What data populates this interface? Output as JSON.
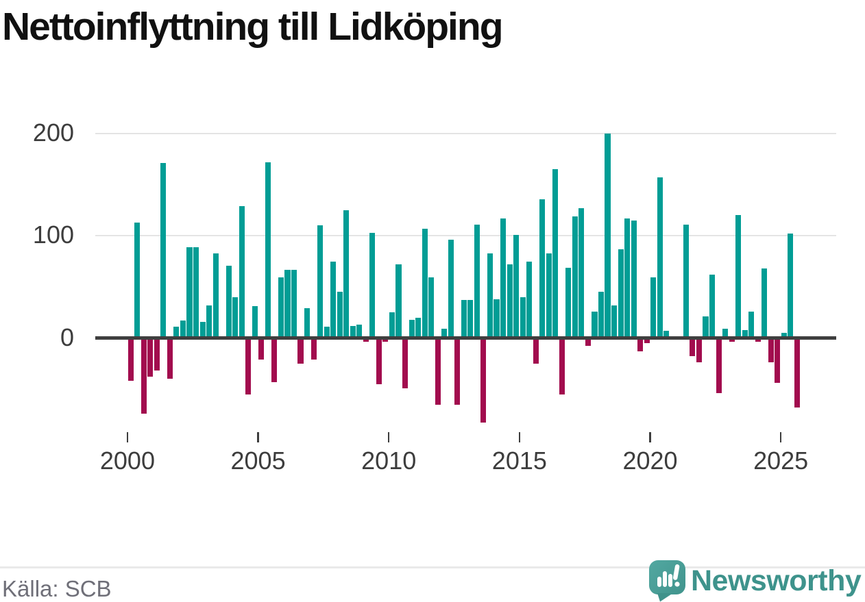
{
  "title": "Nettoinflyttning till Lidköping",
  "source": "Källa: SCB",
  "branding": {
    "name": "Newsworthy"
  },
  "colors": {
    "positive": "#009D95",
    "negative": "#A20C4E",
    "axis": "#3F3F3F",
    "grid": "#E4E4E4",
    "tick_text": "#3D3D3D",
    "title_text": "#111111",
    "source_text": "#6F6F78",
    "brand_teal": "#3E938C",
    "icon_teal_light": "#4FA69F",
    "icon_teal_dark": "#3F928B"
  },
  "chart_data": {
    "type": "bar",
    "title": "Nettoinflyttning till Lidköping",
    "xlabel": "",
    "ylabel": "",
    "x_unit": "quarter",
    "start": "2000-Q1",
    "end": "2025-Q3",
    "frequency": "quarterly",
    "positive_color": "#009D95",
    "negative_color": "#A20C4E",
    "grid": "horizontal",
    "legend": "none",
    "yticks": [
      0,
      100,
      200
    ],
    "xticks": [
      2000,
      2005,
      2010,
      2015,
      2020,
      2025
    ],
    "ylim": [
      -100,
      220
    ],
    "values": [
      -42,
      113,
      -74,
      -38,
      -32,
      171,
      -40,
      11,
      17,
      89,
      89,
      16,
      32,
      83,
      0,
      71,
      40,
      129,
      -55,
      31,
      -21,
      172,
      -43,
      59,
      67,
      67,
      -25,
      29,
      -21,
      110,
      11,
      75,
      45,
      125,
      12,
      13,
      -4,
      103,
      -45,
      -4,
      25,
      72,
      -49,
      18,
      20,
      107,
      59,
      -65,
      9,
      96,
      -65,
      37,
      37,
      111,
      -83,
      83,
      38,
      117,
      72,
      101,
      40,
      75,
      -25,
      136,
      83,
      165,
      -55,
      69,
      119,
      127,
      -8,
      26,
      45,
      200,
      32,
      87,
      117,
      115,
      -13,
      -5,
      59,
      157,
      7,
      1,
      0,
      111,
      -18,
      -24,
      21,
      62,
      -54,
      9,
      -4,
      120,
      8,
      26,
      -4,
      68,
      -24,
      -44,
      5,
      102,
      -68
    ]
  }
}
